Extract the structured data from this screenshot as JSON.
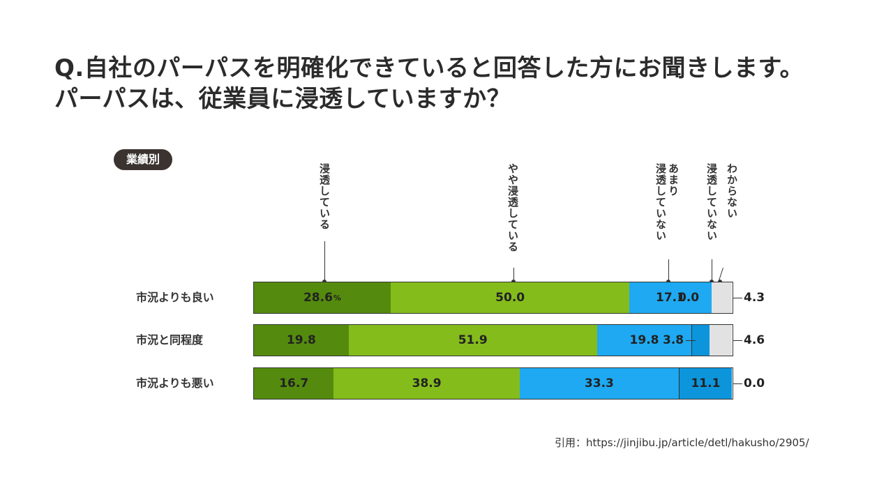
{
  "title": {
    "line1": "Q.自社のパーパスを明確化できていると回答した方にお聞きします。",
    "line2": "パーパスは、従業員に浸透していますか？"
  },
  "badge": "業績別",
  "citation": "引用：https://jinjibu.jp/article/detl/hakusho/2905/",
  "colors": {
    "dark_green": "#548b0e",
    "light_green": "#84bc1c",
    "blue": "#1ea9f2",
    "dark_blue": "#0d95dc",
    "gray": "#e2e2e2"
  },
  "chart_data": {
    "type": "bar",
    "orientation": "horizontal-stacked-100",
    "categories": [
      "市況よりも良い",
      "市況と同程度",
      "市況よりも悪い"
    ],
    "series": [
      {
        "name": "浸透している",
        "values": [
          28.6,
          19.8,
          16.7
        ]
      },
      {
        "name": "やや浸透している",
        "values": [
          50.0,
          51.9,
          38.9
        ]
      },
      {
        "name": "あまり浸透していない",
        "values": [
          17.1,
          19.8,
          33.3
        ]
      },
      {
        "name": "浸透していない",
        "values": [
          0.0,
          3.8,
          11.1
        ]
      },
      {
        "name": "わからない",
        "values": [
          4.3,
          4.6,
          0.0
        ]
      }
    ],
    "value_labels": [
      [
        "28.6",
        "50.0",
        "17.1",
        "0.0",
        "4.3"
      ],
      [
        "19.8",
        "51.9",
        "19.8",
        "3.8",
        "4.6"
      ],
      [
        "16.7",
        "38.9",
        "33.3",
        "11.1",
        "0.0"
      ]
    ],
    "unit_label": "%",
    "legend_labels": [
      "浸透している",
      "やや浸透している",
      "あまり\n浸透していない",
      "浸透していない",
      "わからない"
    ]
  }
}
